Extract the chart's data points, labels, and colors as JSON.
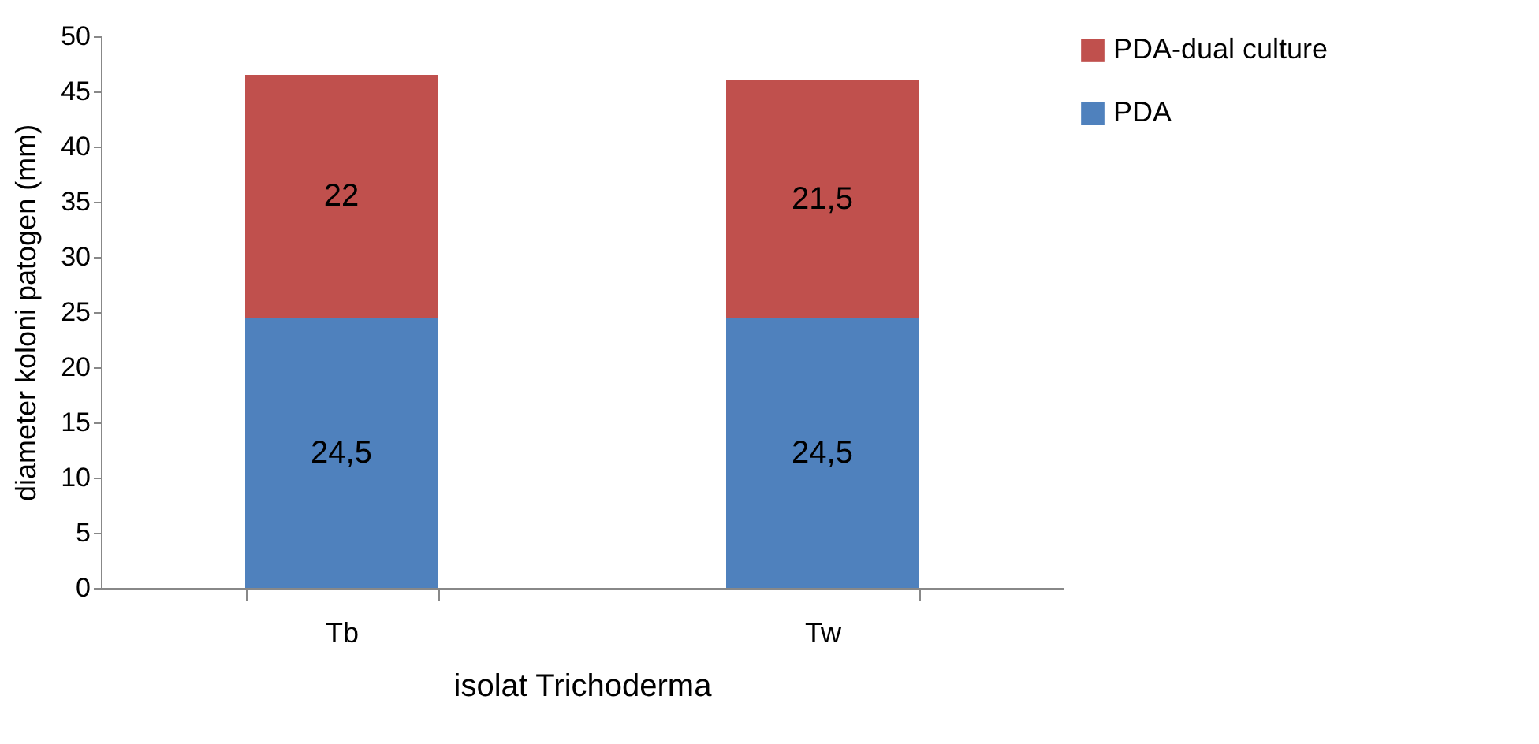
{
  "chart_data": {
    "type": "bar",
    "stacked": true,
    "categories": [
      "Tb",
      "Tw"
    ],
    "xlabel": "isolat Trichoderma",
    "ylabel": "diameter koloni patogen (mm)",
    "ylim": [
      0,
      50
    ],
    "yticks": [
      0,
      5,
      10,
      15,
      20,
      25,
      30,
      35,
      40,
      45,
      50
    ],
    "grid": false,
    "legend": "right",
    "series": [
      {
        "name": "PDA",
        "color": "#4f81bd",
        "values": [
          24.5,
          24.5
        ],
        "value_labels": [
          "24,5",
          "24,5"
        ]
      },
      {
        "name": "PDA-dual culture",
        "color": "#c0504d",
        "values": [
          22,
          21.5
        ],
        "value_labels": [
          "22",
          "21,5"
        ]
      }
    ]
  }
}
